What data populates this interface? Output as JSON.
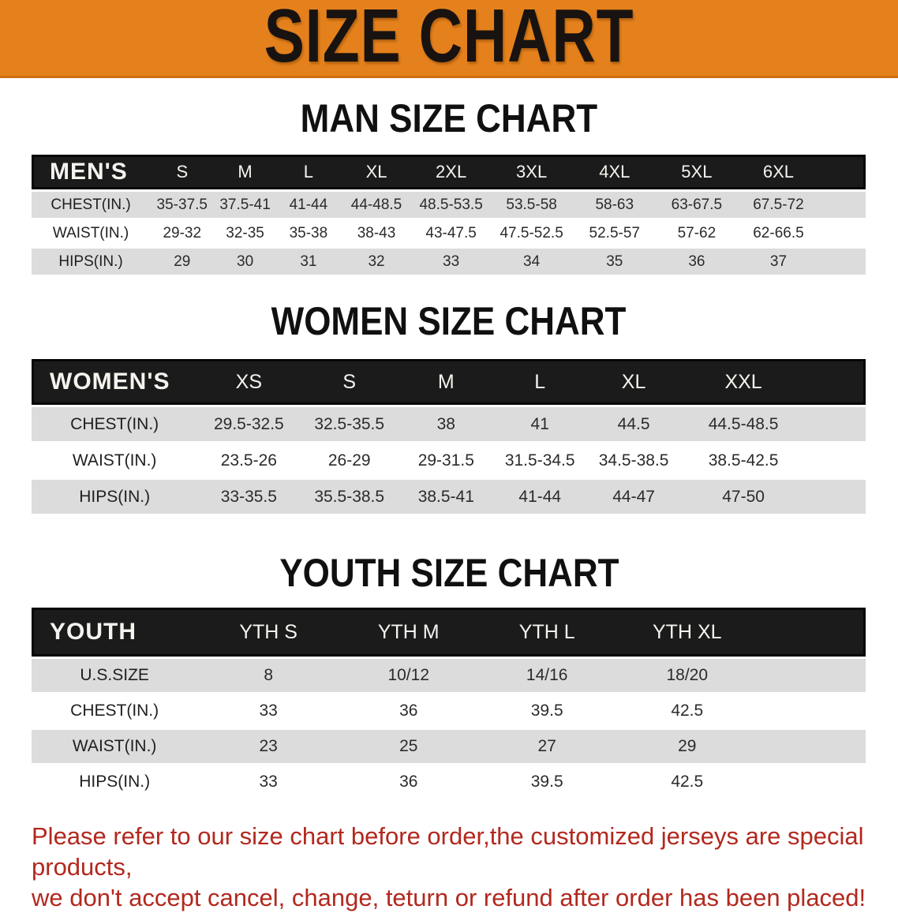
{
  "banner": {
    "title": "SIZE CHART",
    "bg_color": "#e5811c",
    "text_color": "#181310"
  },
  "sections": [
    {
      "heading": "MAN SIZE CHART",
      "table": {
        "label": "MEN'S",
        "columns": [
          "S",
          "M",
          "L",
          "XL",
          "2XL",
          "3XL",
          "4XL",
          "5XL",
          "6XL"
        ],
        "rows": [
          {
            "label": "CHEST(IN.)",
            "values": [
              "35-37.5",
              "37.5-41",
              "41-44",
              "44-48.5",
              "48.5-53.5",
              "53.5-58",
              "58-63",
              "63-67.5",
              "67.5-72"
            ]
          },
          {
            "label": "WAIST(IN.)",
            "values": [
              "29-32",
              "32-35",
              "35-38",
              "38-43",
              "43-47.5",
              "47.5-52.5",
              "52.5-57",
              "57-62",
              "62-66.5"
            ]
          },
          {
            "label": "HIPS(IN.)",
            "values": [
              "29",
              "30",
              "31",
              "32",
              "33",
              "34",
              "35",
              "36",
              "37"
            ]
          }
        ]
      }
    },
    {
      "heading": "WOMEN SIZE CHART",
      "table": {
        "label": "WOMEN'S",
        "columns": [
          "XS",
          "S",
          "M",
          "L",
          "XL",
          "XXL"
        ],
        "rows": [
          {
            "label": "CHEST(IN.)",
            "values": [
              "29.5-32.5",
              "32.5-35.5",
              "38",
              "41",
              "44.5",
              "44.5-48.5"
            ]
          },
          {
            "label": "WAIST(IN.)",
            "values": [
              "23.5-26",
              "26-29",
              "29-31.5",
              "31.5-34.5",
              "34.5-38.5",
              "38.5-42.5"
            ]
          },
          {
            "label": "HIPS(IN.)",
            "values": [
              "33-35.5",
              "35.5-38.5",
              "38.5-41",
              "41-44",
              "44-47",
              "47-50"
            ]
          }
        ]
      }
    },
    {
      "heading": "YOUTH SIZE CHART",
      "table": {
        "label": "YOUTH",
        "columns": [
          "YTH S",
          "YTH M",
          "YTH L",
          "YTH XL"
        ],
        "rows": [
          {
            "label": "U.S.SIZE",
            "values": [
              "8",
              "10/12",
              "14/16",
              "18/20"
            ]
          },
          {
            "label": "CHEST(IN.)",
            "values": [
              "33",
              "36",
              "39.5",
              "42.5"
            ]
          },
          {
            "label": "WAIST(IN.)",
            "values": [
              "23",
              "25",
              "27",
              "29"
            ]
          },
          {
            "label": "HIPS(IN.)",
            "values": [
              "33",
              "36",
              "39.5",
              "42.5"
            ]
          }
        ]
      }
    }
  ],
  "disclaimer": {
    "color": "#b2281e",
    "line1": "Please refer to our size chart before order,the customized jerseys are special products,",
    "line2": "we don't accept cancel, change, teturn or refund after order has been placed!"
  }
}
